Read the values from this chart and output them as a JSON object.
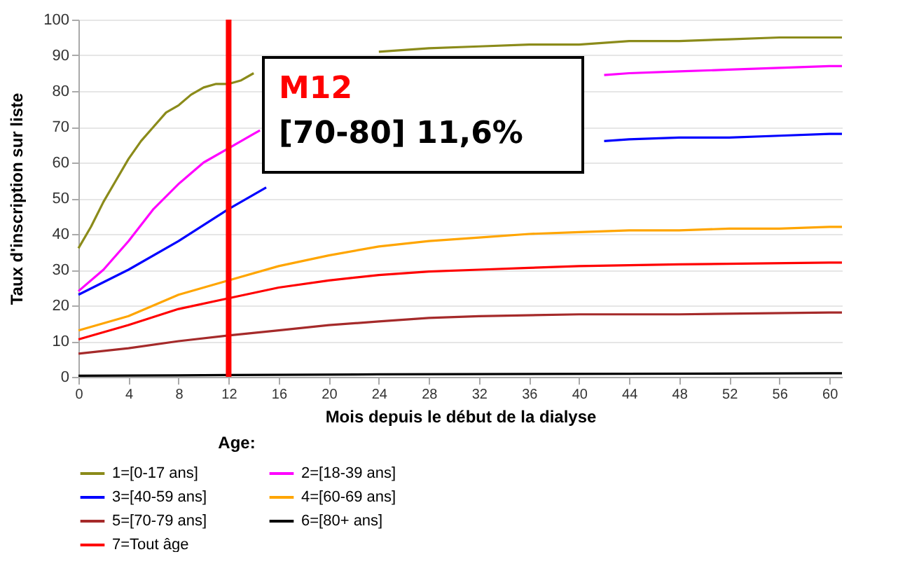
{
  "chart_data": {
    "type": "line",
    "xlabel": "Mois depuis le début de la dialyse",
    "ylabel": "Taux d'inscription sur liste",
    "legend_title": "Age:",
    "legend": "bottom",
    "grid": "y",
    "xlim": [
      0,
      61
    ],
    "xticks": [
      0,
      4,
      8,
      12,
      16,
      20,
      24,
      28,
      32,
      36,
      40,
      44,
      48,
      52,
      56,
      60
    ],
    "ylim": [
      0,
      100
    ],
    "yticks": [
      0,
      10,
      20,
      30,
      40,
      50,
      60,
      70,
      80,
      90,
      100
    ],
    "ref_lines": [
      {
        "axis": "x",
        "value": 12,
        "label": "M12",
        "color": "#ff0000"
      }
    ],
    "annotations": [
      "[70-80] 11,6%"
    ],
    "series": [
      {
        "name": "1=[0-17 ans]",
        "color": "#8b8b1a",
        "x": [
          0,
          1,
          2,
          3,
          4,
          5,
          6,
          7,
          8,
          9,
          10,
          11,
          12,
          13,
          14,
          14.5,
          24,
          28,
          32,
          36,
          40,
          44,
          48,
          52,
          56,
          60,
          61
        ],
        "values": [
          36,
          42,
          49,
          55,
          61,
          66,
          70,
          74,
          76,
          79,
          81,
          82,
          82,
          83,
          85,
          null,
          91,
          92,
          92.5,
          93,
          93,
          94,
          94,
          94.5,
          95,
          95,
          95
        ]
      },
      {
        "name": "2=[18-39 ans]",
        "color": "#ff00ff",
        "x": [
          0,
          2,
          4,
          6,
          8,
          9,
          10,
          12,
          14,
          14.5,
          15.5,
          42,
          44,
          48,
          52,
          56,
          60,
          61
        ],
        "values": [
          24,
          30,
          38,
          47,
          54,
          57,
          60,
          64,
          68,
          69,
          null,
          84.5,
          85,
          85.5,
          86,
          86.5,
          87,
          87
        ]
      },
      {
        "name": "3=[40-59 ans]",
        "color": "#0000ff",
        "x": [
          0,
          4,
          8,
          12,
          14,
          15,
          15.5,
          42,
          44,
          48,
          52,
          56,
          60,
          61
        ],
        "values": [
          23,
          30,
          38,
          47,
          51,
          53,
          null,
          66,
          66.5,
          67,
          67,
          67.5,
          68,
          68
        ]
      },
      {
        "name": "4=[60-69 ans]",
        "color": "#ffa500",
        "x": [
          0,
          4,
          8,
          12,
          16,
          20,
          24,
          28,
          32,
          36,
          40,
          44,
          48,
          52,
          56,
          60,
          61
        ],
        "values": [
          13,
          17,
          23,
          27,
          31,
          34,
          36.5,
          38,
          39,
          40,
          40.5,
          41,
          41,
          41.5,
          41.5,
          42,
          42
        ]
      },
      {
        "name": "5=[70-79 ans]",
        "color": "#a52a2a",
        "x": [
          0,
          4,
          8,
          12,
          16,
          20,
          24,
          28,
          32,
          40,
          48,
          60,
          61
        ],
        "values": [
          6.5,
          8,
          10,
          11.6,
          13,
          14.5,
          15.5,
          16.5,
          17,
          17.5,
          17.5,
          18,
          18
        ]
      },
      {
        "name": "6=[80+ ans]",
        "color": "#000000",
        "x": [
          0,
          12,
          24,
          60,
          61
        ],
        "values": [
          0.3,
          0.5,
          0.7,
          1,
          1
        ]
      },
      {
        "name": "7=Tout âge",
        "color": "#ff0000",
        "x": [
          0,
          4,
          8,
          12,
          16,
          20,
          24,
          28,
          32,
          36,
          40,
          48,
          60,
          61
        ],
        "values": [
          10.5,
          14.5,
          19,
          22,
          25,
          27,
          28.5,
          29.5,
          30,
          30.5,
          31,
          31.5,
          32,
          32
        ]
      }
    ]
  }
}
